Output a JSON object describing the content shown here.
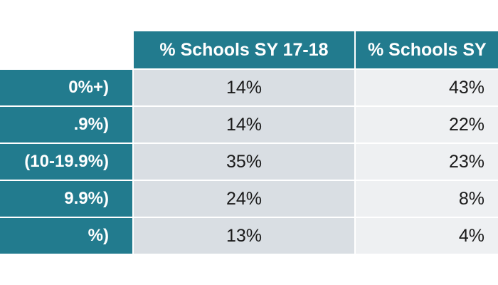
{
  "table": {
    "headers": [
      "% Schools SY 17-18",
      "% Schools SY"
    ],
    "rows": [
      {
        "label": "0%+)",
        "values": [
          "14%",
          "43%"
        ]
      },
      {
        "label": ".9%)",
        "values": [
          "14%",
          "22%"
        ]
      },
      {
        "label": "(10-19.9%)",
        "values": [
          "35%",
          "23%"
        ]
      },
      {
        "label": "9.9%)",
        "values": [
          "24%",
          "8%"
        ]
      },
      {
        "label": "%)",
        "values": [
          "13%",
          "4%"
        ]
      }
    ]
  },
  "colors": {
    "header_bg": "#227b8e",
    "label_bg": "#227b8e",
    "col_a_bg": "#d9dee3",
    "col_b_bg": "#eef0f2"
  }
}
